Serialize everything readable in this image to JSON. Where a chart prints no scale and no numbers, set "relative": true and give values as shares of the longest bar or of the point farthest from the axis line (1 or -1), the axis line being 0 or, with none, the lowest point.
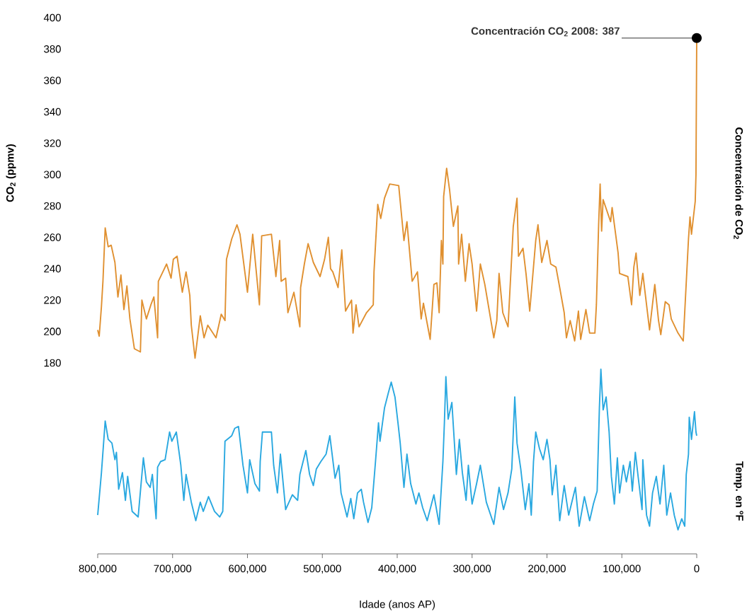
{
  "chart_data": [
    {
      "type": "line",
      "ylabel": "CO$_{2}$ (ppmv)",
      "xlim": [
        800000,
        0
      ],
      "ylim": [
        180,
        400
      ],
      "yticks": [
        180,
        200,
        220,
        240,
        260,
        280,
        300,
        320,
        340,
        360,
        380,
        400
      ],
      "tick_labels": "y",
      "grid": false,
      "legend": false,
      "x": [
        800000,
        798000,
        795000,
        793000,
        790000,
        786000,
        782000,
        777000,
        773000,
        769000,
        765000,
        761000,
        757000,
        751000,
        743000,
        741000,
        735000,
        729000,
        725000,
        720000,
        719000,
        713000,
        708000,
        702000,
        699000,
        694000,
        687000,
        682000,
        677000,
        675000,
        670000,
        663000,
        658000,
        653000,
        642000,
        635000,
        630000,
        628000,
        621000,
        614000,
        610000,
        600000,
        593000,
        584000,
        581000,
        568000,
        562000,
        557000,
        555000,
        549000,
        546000,
        538000,
        530000,
        529000,
        524000,
        519000,
        512000,
        503000,
        497000,
        492000,
        489000,
        486000,
        479000,
        474000,
        469000,
        461000,
        459000,
        455000,
        451000,
        441000,
        432000,
        431000,
        426000,
        422000,
        417000,
        410000,
        398000,
        391000,
        387000,
        380000,
        373000,
        368000,
        365000,
        356000,
        351000,
        347000,
        344000,
        341000,
        339000,
        338000,
        334000,
        330000,
        325000,
        319000,
        318000,
        314000,
        309000,
        304000,
        300000,
        294000,
        289000,
        283000,
        271000,
        267000,
        264000,
        259000,
        252000,
        245000,
        240000,
        238000,
        232000,
        228000,
        223000,
        215000,
        212000,
        207000,
        200000,
        195000,
        188000,
        183000,
        177000,
        174000,
        169000,
        163000,
        158000,
        155000,
        148000,
        143000,
        136000,
        134000,
        131000,
        129000,
        127000,
        125000,
        115000,
        113000,
        105000,
        103000,
        92000,
        87000,
        84000,
        81000,
        76000,
        72000,
        63000,
        56000,
        51000,
        48000,
        42000,
        37000,
        34000,
        25000,
        18000,
        11000,
        9000,
        7000,
        2000,
        1000,
        500,
        0
      ],
      "series": [
        {
          "name": "Concentración de CO$_{2}$",
          "color": "#e09030",
          "values": [
            201,
            197,
            216,
            232,
            266,
            254,
            255,
            244,
            222,
            236,
            214,
            229,
            208,
            189,
            187,
            220,
            208,
            217,
            222,
            196,
            232,
            238,
            243,
            234,
            246,
            248,
            225,
            238,
            223,
            204,
            183,
            210,
            196,
            204,
            196,
            211,
            207,
            246,
            259,
            268,
            262,
            225,
            262,
            217,
            261,
            262,
            235,
            258,
            232,
            234,
            212,
            225,
            203,
            228,
            243,
            256,
            244,
            235,
            246,
            260,
            240,
            238,
            228,
            252,
            213,
            220,
            199,
            217,
            203,
            212,
            217,
            238,
            281,
            272,
            285,
            294,
            293,
            258,
            270,
            232,
            238,
            208,
            218,
            195,
            230,
            231,
            212,
            258,
            243,
            286,
            304,
            290,
            267,
            280,
            243,
            262,
            232,
            256,
            243,
            213,
            243,
            230,
            196,
            207,
            237,
            212,
            203,
            267,
            285,
            248,
            253,
            237,
            213,
            258,
            268,
            244,
            258,
            243,
            241,
            228,
            212,
            196,
            207,
            194,
            213,
            195,
            214,
            199,
            199,
            217,
            268,
            294,
            264,
            284,
            270,
            279,
            250,
            237,
            235,
            217,
            241,
            250,
            223,
            237,
            201,
            230,
            207,
            198,
            219,
            217,
            208,
            199,
            194,
            259,
            273,
            262,
            283,
            300,
            345,
            387
          ]
        }
      ],
      "annotations": [
        {
          "text": "Concentración CO$_{2}$ 2008: 387",
          "x": 0,
          "y": 387
        }
      ]
    },
    {
      "type": "line",
      "relative": true,
      "xlabel": "Idade (anos AP)",
      "xlim": [
        800000,
        0
      ],
      "xticks": [
        {
          "value": 800000,
          "label": "800,000"
        },
        {
          "value": 700000,
          "label": "700,000"
        },
        {
          "value": 600000,
          "label": "600,000"
        },
        {
          "value": 500000,
          "label": "500,000"
        },
        {
          "value": 400000,
          "label": "400,000"
        },
        {
          "value": 300000,
          "label": "300,000"
        },
        {
          "value": 200000,
          "label": "200,000"
        },
        {
          "value": 100000,
          "label": "100,000"
        },
        0
      ],
      "tick_labels": "x",
      "grid": false,
      "legend": false,
      "x": [
        800000,
        795000,
        790000,
        786000,
        781000,
        777000,
        775000,
        772000,
        767000,
        763000,
        760000,
        754000,
        746000,
        739000,
        735000,
        730000,
        727000,
        722000,
        720000,
        716000,
        710000,
        704000,
        701000,
        695000,
        689000,
        685000,
        682000,
        675000,
        669000,
        663000,
        659000,
        652000,
        644000,
        637000,
        633000,
        630000,
        621000,
        617000,
        612000,
        606000,
        600000,
        597000,
        590000,
        584000,
        583000,
        580000,
        568000,
        565000,
        560000,
        556000,
        549000,
        540000,
        533000,
        530000,
        522000,
        517000,
        512000,
        508000,
        502000,
        495000,
        490000,
        483000,
        478000,
        475000,
        467000,
        462000,
        458000,
        453000,
        448000,
        445000,
        439000,
        434000,
        429000,
        425000,
        423000,
        417000,
        412000,
        408000,
        403000,
        399000,
        396000,
        391000,
        387000,
        382000,
        375000,
        371000,
        366000,
        360000,
        351000,
        344000,
        339000,
        337000,
        335000,
        332000,
        327000,
        321000,
        317000,
        313000,
        308000,
        305000,
        300000,
        294000,
        289000,
        281000,
        271000,
        264000,
        258000,
        252000,
        247000,
        243000,
        240000,
        235000,
        229000,
        224000,
        221000,
        218000,
        215000,
        210000,
        205000,
        200000,
        196000,
        193000,
        188000,
        183000,
        177000,
        171000,
        162000,
        157000,
        150000,
        143000,
        138000,
        133000,
        130000,
        128000,
        125000,
        121000,
        117000,
        114000,
        110000,
        106000,
        103000,
        98000,
        94000,
        89000,
        86000,
        82000,
        78000,
        73000,
        72000,
        67000,
        63000,
        59000,
        54000,
        49000,
        44000,
        40000,
        35000,
        30000,
        25000,
        20000,
        16000,
        14000,
        11000,
        10000,
        7000,
        3000,
        1000,
        0
      ],
      "series": [
        {
          "name": "Temp. en ºF",
          "color": "#29a8e0",
          "values": [
            0.21,
            0.44,
            0.72,
            0.62,
            0.6,
            0.51,
            0.55,
            0.35,
            0.44,
            0.29,
            0.42,
            0.23,
            0.2,
            0.52,
            0.39,
            0.36,
            0.43,
            0.19,
            0.47,
            0.5,
            0.51,
            0.66,
            0.61,
            0.66,
            0.48,
            0.29,
            0.43,
            0.28,
            0.18,
            0.28,
            0.23,
            0.31,
            0.23,
            0.2,
            0.23,
            0.61,
            0.64,
            0.68,
            0.69,
            0.48,
            0.33,
            0.51,
            0.38,
            0.34,
            0.5,
            0.66,
            0.66,
            0.48,
            0.33,
            0.54,
            0.24,
            0.32,
            0.29,
            0.43,
            0.56,
            0.43,
            0.37,
            0.46,
            0.5,
            0.54,
            0.64,
            0.41,
            0.48,
            0.33,
            0.2,
            0.3,
            0.19,
            0.33,
            0.35,
            0.28,
            0.17,
            0.25,
            0.5,
            0.71,
            0.61,
            0.79,
            0.87,
            0.93,
            0.85,
            0.71,
            0.6,
            0.36,
            0.54,
            0.38,
            0.27,
            0.33,
            0.25,
            0.18,
            0.32,
            0.16,
            0.5,
            0.71,
            0.96,
            0.73,
            0.82,
            0.43,
            0.62,
            0.44,
            0.29,
            0.48,
            0.27,
            0.38,
            0.48,
            0.28,
            0.16,
            0.36,
            0.24,
            0.33,
            0.46,
            0.85,
            0.6,
            0.46,
            0.24,
            0.38,
            0.21,
            0.5,
            0.66,
            0.57,
            0.51,
            0.62,
            0.51,
            0.32,
            0.48,
            0.18,
            0.37,
            0.21,
            0.36,
            0.15,
            0.31,
            0.18,
            0.27,
            0.34,
            0.79,
            1.0,
            0.78,
            0.85,
            0.66,
            0.42,
            0.27,
            0.52,
            0.33,
            0.48,
            0.39,
            0.5,
            0.34,
            0.55,
            0.41,
            0.24,
            0.51,
            0.21,
            0.15,
            0.33,
            0.42,
            0.27,
            0.48,
            0.21,
            0.33,
            0.21,
            0.13,
            0.19,
            0.15,
            0.43,
            0.54,
            0.74,
            0.62,
            0.77,
            0.66,
            0.64
          ]
        }
      ]
    }
  ]
}
